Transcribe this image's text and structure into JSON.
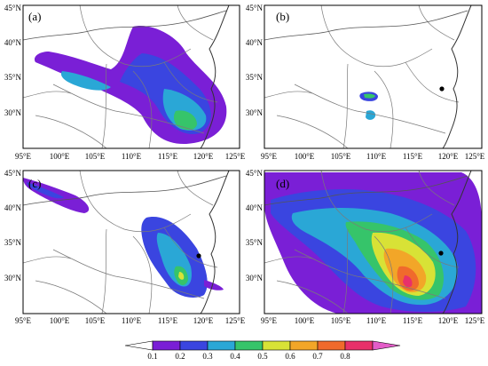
{
  "x_tick_labels": [
    "95°E",
    "100°E",
    "105°E",
    "110°E",
    "115°E",
    "120°E",
    "125°E"
  ],
  "y_tick_labels": [
    "30°N",
    "35°N",
    "40°N",
    "45°N"
  ],
  "panels": [
    {
      "label": "(a)"
    },
    {
      "label": "(b)"
    },
    {
      "label": "(c)"
    },
    {
      "label": "(d)"
    }
  ],
  "colorbar": {
    "ticks": [
      "0.1",
      "0.2",
      "0.3",
      "0.4",
      "0.5",
      "0.6",
      "0.7",
      "0.8"
    ],
    "colors": [
      "#ffffff",
      "#7a1fd6",
      "#3a45e0",
      "#2aa7d6",
      "#36c46a",
      "#d8e236",
      "#f2a628",
      "#f06a2c",
      "#e8306a",
      "#e35cc8"
    ]
  },
  "marker_color": "#000000"
}
